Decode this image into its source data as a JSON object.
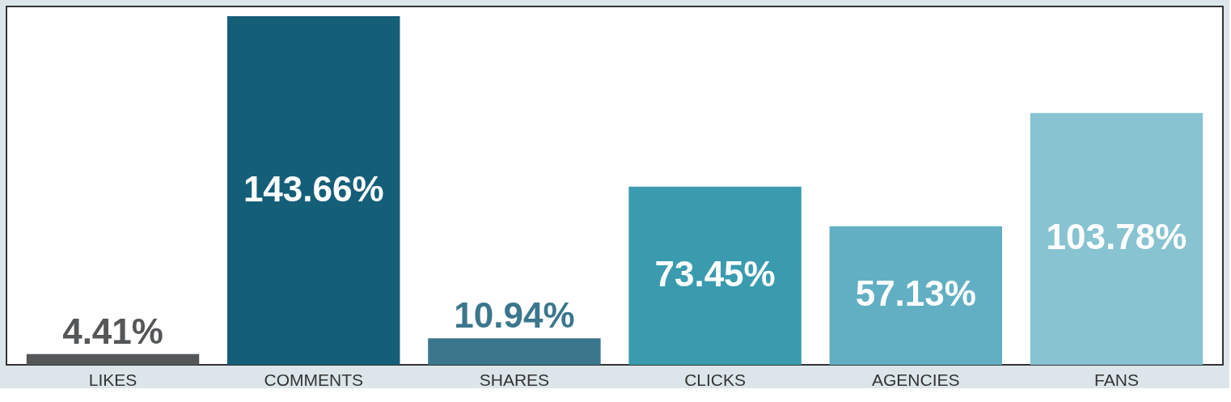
{
  "chart_data": {
    "type": "bar",
    "categories": [
      "LIKES",
      "COMMENTS",
      "SHARES",
      "CLICKS",
      "AGENCIES",
      "FANS"
    ],
    "values": [
      4.41,
      143.66,
      10.94,
      73.45,
      57.13,
      103.78
    ],
    "value_labels": [
      "4.41%",
      "143.66%",
      "10.94%",
      "73.45%",
      "57.13%",
      "103.78%"
    ],
    "colors": [
      "#545658",
      "#155e78",
      "#3a778c",
      "#3a9baf",
      "#62afc4",
      "#87c3d1"
    ],
    "grid": false
  }
}
